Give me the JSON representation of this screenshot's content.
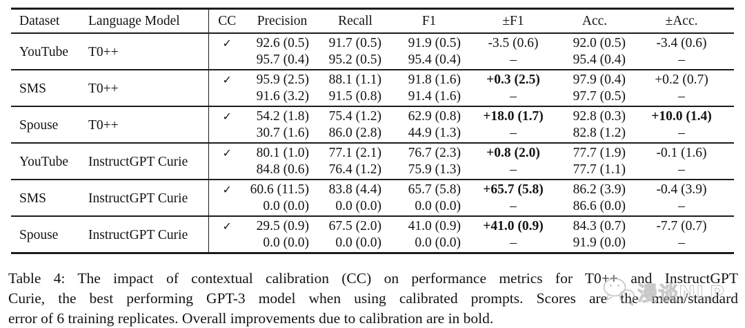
{
  "table": {
    "headers": [
      "Dataset",
      "Language Model",
      "CC",
      "Precision",
      "Recall",
      "F1",
      "±F1",
      "Acc.",
      "±Acc."
    ],
    "groups": [
      {
        "dataset": "YouTube",
        "model": "T0++",
        "rows": [
          {
            "cc": "✓",
            "precision": "92.6 (0.5)",
            "recall": "91.7 (0.5)",
            "f1": "91.9 (0.5)",
            "df1": "-3.5 (0.6)",
            "df1_bold": false,
            "acc": "92.0 (0.5)",
            "dacc": "-3.4 (0.6)",
            "dacc_bold": false
          },
          {
            "cc": "",
            "precision": "95.7 (0.4)",
            "recall": "95.2 (0.5)",
            "f1": "95.4 (0.4)",
            "df1": "–",
            "df1_bold": false,
            "acc": "95.4 (0.4)",
            "dacc": "–",
            "dacc_bold": false
          }
        ]
      },
      {
        "dataset": "SMS",
        "model": "T0++",
        "rows": [
          {
            "cc": "✓",
            "precision": "95.9 (2.5)",
            "recall": "88.1 (1.1)",
            "f1": "91.8 (1.6)",
            "df1": "+0.3 (2.5)",
            "df1_bold": true,
            "acc": "97.9 (0.4)",
            "dacc": "+0.2 (0.7)",
            "dacc_bold": false
          },
          {
            "cc": "",
            "precision": "91.6 (3.2)",
            "recall": "91.5 (0.8)",
            "f1": "91.4 (1.6)",
            "df1": "–",
            "df1_bold": false,
            "acc": "97.7 (0.5)",
            "dacc": "–",
            "dacc_bold": false
          }
        ]
      },
      {
        "dataset": "Spouse",
        "model": "T0++",
        "rows": [
          {
            "cc": "✓",
            "precision": "54.2 (1.8)",
            "recall": "75.4 (1.2)",
            "f1": "62.9 (0.8)",
            "df1": "+18.0 (1.7)",
            "df1_bold": true,
            "acc": "92.8 (0.3)",
            "dacc": "+10.0 (1.4)",
            "dacc_bold": true
          },
          {
            "cc": "",
            "precision": "30.7 (1.6)",
            "recall": "86.0 (2.8)",
            "f1": "44.9 (1.3)",
            "df1": "–",
            "df1_bold": false,
            "acc": "82.8 (1.2)",
            "dacc": "–",
            "dacc_bold": false
          }
        ]
      },
      {
        "dataset": "YouTube",
        "model": "InstructGPT Curie",
        "rows": [
          {
            "cc": "✓",
            "precision": "80.1 (1.0)",
            "recall": "77.1 (2.1)",
            "f1": "76.7 (2.3)",
            "df1": "+0.8 (2.0)",
            "df1_bold": true,
            "acc": "77.7 (1.9)",
            "dacc": "-0.1 (1.6)",
            "dacc_bold": false
          },
          {
            "cc": "",
            "precision": "84.8 (0.6)",
            "recall": "76.4 (1.2)",
            "f1": "75.9 (1.3)",
            "df1": "–",
            "df1_bold": false,
            "acc": "77.7 (1.1)",
            "dacc": "–",
            "dacc_bold": false
          }
        ]
      },
      {
        "dataset": "SMS",
        "model": "InstructGPT Curie",
        "rows": [
          {
            "cc": "✓",
            "precision": "60.6 (11.5)",
            "recall": "83.8 (4.4)",
            "f1": "65.7 (5.8)",
            "df1": "+65.7 (5.8)",
            "df1_bold": true,
            "acc": "86.2 (3.9)",
            "dacc": "-0.4 (3.9)",
            "dacc_bold": false
          },
          {
            "cc": "",
            "precision": "0.0 (0.0)",
            "recall": "0.0 (0.0)",
            "f1": "0.0 (0.0)",
            "df1": "–",
            "df1_bold": false,
            "acc": "86.6 (0.0)",
            "dacc": "–",
            "dacc_bold": false
          }
        ]
      },
      {
        "dataset": "Spouse",
        "model": "InstructGPT Curie",
        "rows": [
          {
            "cc": "✓",
            "precision": "29.5 (0.9)",
            "recall": "67.5 (2.0)",
            "f1": "41.0 (0.9)",
            "df1": "+41.0 (0.9)",
            "df1_bold": true,
            "acc": "84.3 (0.7)",
            "dacc": "-7.7 (0.7)",
            "dacc_bold": false
          },
          {
            "cc": "",
            "precision": "0.0 (0.0)",
            "recall": "0.0 (0.0)",
            "f1": "0.0 (0.0)",
            "df1": "–",
            "df1_bold": false,
            "acc": "91.9 (0.0)",
            "dacc": "–",
            "dacc_bold": false
          }
        ]
      }
    ]
  },
  "caption": {
    "lines": [
      "Table 4: The impact of contextual calibration (CC) on performance metrics for T0++ and InstructGPT",
      "Curie, the best performing GPT-3 model when using calibrated prompts. Scores are the mean/standard",
      "error of 6 training replicates. Overall improvements due to calibration are in bold."
    ]
  },
  "watermark": {
    "icon": "wechat-icon",
    "text": "漫谈NLP"
  }
}
